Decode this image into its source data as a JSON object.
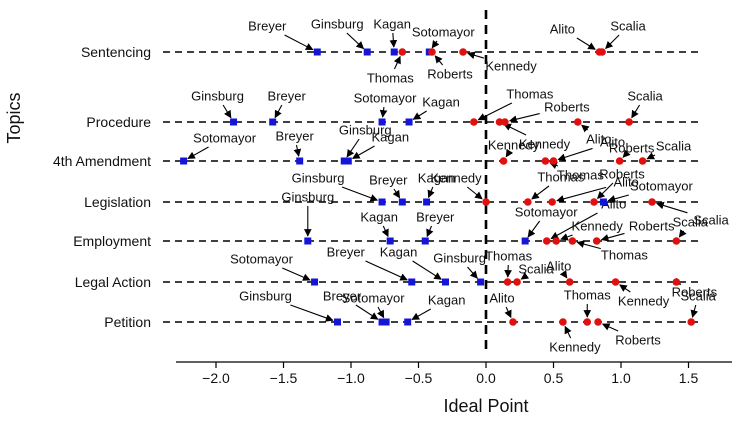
{
  "chart_data": {
    "type": "scatter",
    "title": "",
    "xlabel": "Ideal Point",
    "ylabel": "Topics",
    "xlim": [
      -2.3,
      1.8
    ],
    "xticks": [
      "−2.0",
      "−1.5",
      "−1.0",
      "−0.5",
      "0.0",
      "0.5",
      "1.0",
      "1.5"
    ],
    "colors": {
      "liberal": "#1515d8",
      "conservative": "#e01010",
      "zero_line": "#000000"
    },
    "topics": [
      {
        "name": "Sentencing",
        "points": [
          {
            "justice": "Breyer",
            "x": -1.25,
            "group": "liberal"
          },
          {
            "justice": "Ginsburg",
            "x": -0.88,
            "group": "liberal"
          },
          {
            "justice": "Kagan",
            "x": -0.68,
            "group": "liberal"
          },
          {
            "justice": "Sotomayor",
            "x": -0.42,
            "group": "liberal"
          },
          {
            "justice": "Thomas",
            "x": -0.62,
            "group": "conservative"
          },
          {
            "justice": "Roberts",
            "x": -0.4,
            "group": "conservative"
          },
          {
            "justice": "Kennedy",
            "x": -0.17,
            "group": "conservative"
          },
          {
            "justice": "Alito",
            "x": 0.84,
            "group": "conservative"
          },
          {
            "justice": "Scalia",
            "x": 0.86,
            "group": "conservative"
          }
        ]
      },
      {
        "name": "Procedure",
        "points": [
          {
            "justice": "Ginsburg",
            "x": -1.87,
            "group": "liberal"
          },
          {
            "justice": "Breyer",
            "x": -1.58,
            "group": "liberal"
          },
          {
            "justice": "Sotomayor",
            "x": -0.77,
            "group": "liberal"
          },
          {
            "justice": "Kagan",
            "x": -0.57,
            "group": "liberal"
          },
          {
            "justice": "Thomas",
            "x": -0.09,
            "group": "conservative"
          },
          {
            "justice": "Kennedy",
            "x": 0.1,
            "group": "conservative"
          },
          {
            "justice": "Roberts",
            "x": 0.14,
            "group": "conservative"
          },
          {
            "justice": "Alito",
            "x": 0.68,
            "group": "conservative"
          },
          {
            "justice": "Scalia",
            "x": 1.06,
            "group": "conservative"
          }
        ]
      },
      {
        "name": "4th Amendment",
        "points": [
          {
            "justice": "Sotomayor",
            "x": -2.24,
            "group": "liberal"
          },
          {
            "justice": "Breyer",
            "x": -1.38,
            "group": "liberal"
          },
          {
            "justice": "Ginsburg",
            "x": -1.05,
            "group": "liberal"
          },
          {
            "justice": "Kagan",
            "x": -1.02,
            "group": "liberal"
          },
          {
            "justice": "Kennedy",
            "x": 0.13,
            "group": "conservative"
          },
          {
            "justice": "Thomas",
            "x": 0.44,
            "group": "conservative"
          },
          {
            "justice": "Alito",
            "x": 0.5,
            "group": "conservative"
          },
          {
            "justice": "Roberts",
            "x": 0.99,
            "group": "conservative"
          },
          {
            "justice": "Scalia",
            "x": 1.16,
            "group": "conservative"
          }
        ]
      },
      {
        "name": "Legislation",
        "points": [
          {
            "justice": "Ginsburg",
            "x": -0.77,
            "group": "liberal"
          },
          {
            "justice": "Breyer",
            "x": -0.62,
            "group": "liberal"
          },
          {
            "justice": "Kagan",
            "x": -0.44,
            "group": "liberal"
          },
          {
            "justice": "Sotomayor",
            "x": 0.87,
            "group": "liberal"
          },
          {
            "justice": "Kennedy",
            "x": 0.0,
            "group": "conservative"
          },
          {
            "justice": "Thomas",
            "x": 0.31,
            "group": "conservative"
          },
          {
            "justice": "Alito",
            "x": 0.49,
            "group": "conservative"
          },
          {
            "justice": "Roberts",
            "x": 0.8,
            "group": "conservative"
          },
          {
            "justice": "Scalia",
            "x": 1.23,
            "group": "conservative"
          }
        ]
      },
      {
        "name": "Employment",
        "points": [
          {
            "justice": "Ginsburg",
            "x": -1.32,
            "group": "liberal"
          },
          {
            "justice": "Kagan",
            "x": -0.71,
            "group": "liberal"
          },
          {
            "justice": "Breyer",
            "x": -0.45,
            "group": "liberal"
          },
          {
            "justice": "Sotomayor",
            "x": 0.29,
            "group": "liberal"
          },
          {
            "justice": "Alito",
            "x": 0.45,
            "group": "conservative"
          },
          {
            "justice": "Kennedy",
            "x": 0.52,
            "group": "conservative"
          },
          {
            "justice": "Thomas",
            "x": 0.64,
            "group": "conservative"
          },
          {
            "justice": "Roberts",
            "x": 0.82,
            "group": "conservative"
          },
          {
            "justice": "Scalia",
            "x": 1.41,
            "group": "conservative"
          }
        ]
      },
      {
        "name": "Legal Action",
        "points": [
          {
            "justice": "Sotomayor",
            "x": -1.27,
            "group": "liberal"
          },
          {
            "justice": "Breyer",
            "x": -0.55,
            "group": "liberal"
          },
          {
            "justice": "Kagan",
            "x": -0.3,
            "group": "liberal"
          },
          {
            "justice": "Ginsburg",
            "x": -0.04,
            "group": "liberal"
          },
          {
            "justice": "Thomas",
            "x": 0.16,
            "group": "conservative"
          },
          {
            "justice": "Scalia",
            "x": 0.23,
            "group": "conservative"
          },
          {
            "justice": "Alito",
            "x": 0.62,
            "group": "conservative"
          },
          {
            "justice": "Kennedy",
            "x": 0.96,
            "group": "conservative"
          },
          {
            "justice": "Roberts",
            "x": 1.41,
            "group": "conservative"
          }
        ]
      },
      {
        "name": "Petition",
        "points": [
          {
            "justice": "Ginsburg",
            "x": -1.1,
            "group": "liberal"
          },
          {
            "justice": "Breyer",
            "x": -0.77,
            "group": "liberal"
          },
          {
            "justice": "Sotomayor",
            "x": -0.74,
            "group": "liberal"
          },
          {
            "justice": "Kagan",
            "x": -0.58,
            "group": "liberal"
          },
          {
            "justice": "Alito",
            "x": 0.2,
            "group": "conservative"
          },
          {
            "justice": "Kennedy",
            "x": 0.57,
            "group": "conservative"
          },
          {
            "justice": "Thomas",
            "x": 0.75,
            "group": "conservative"
          },
          {
            "justice": "Roberts",
            "x": 0.83,
            "group": "conservative"
          },
          {
            "justice": "Scalia",
            "x": 1.52,
            "group": "conservative"
          }
        ]
      }
    ]
  }
}
